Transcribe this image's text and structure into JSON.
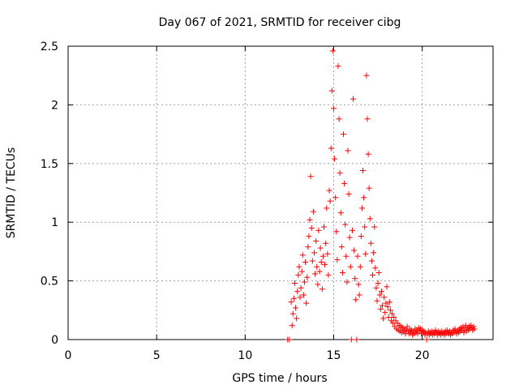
{
  "chart_data": {
    "type": "scatter",
    "title": "Day 067 of 2021, SRMTID for receiver cibg",
    "xlabel": "GPS time / hours",
    "ylabel": "SRMTID / TECUs",
    "xlim": [
      0,
      24
    ],
    "ylim": [
      0,
      2.5
    ],
    "x_ticks": [
      0,
      5,
      10,
      15,
      20
    ],
    "y_ticks": [
      0,
      0.5,
      1,
      1.5,
      2,
      2.5
    ],
    "x_tick_labels": [
      "0",
      "5",
      "10",
      "15",
      "20"
    ],
    "y_tick_labels": [
      "0",
      "0.5",
      "1",
      "1.5",
      "2",
      "2.5"
    ],
    "grid": true,
    "marker": "+",
    "color": "#ff0000",
    "series": [
      {
        "name": "SRMTID",
        "points": [
          [
            12.4,
            0.0
          ],
          [
            12.5,
            0.0
          ],
          [
            12.6,
            0.32
          ],
          [
            12.65,
            0.12
          ],
          [
            12.7,
            0.22
          ],
          [
            12.75,
            0.35
          ],
          [
            12.8,
            0.48
          ],
          [
            12.85,
            0.27
          ],
          [
            12.9,
            0.18
          ],
          [
            12.95,
            0.41
          ],
          [
            13.0,
            0.55
          ],
          [
            13.05,
            0.62
          ],
          [
            13.1,
            0.36
          ],
          [
            13.15,
            0.44
          ],
          [
            13.2,
            0.58
          ],
          [
            13.25,
            0.72
          ],
          [
            13.3,
            0.38
          ],
          [
            13.35,
            0.49
          ],
          [
            13.4,
            0.66
          ],
          [
            13.45,
            0.31
          ],
          [
            13.5,
            0.53
          ],
          [
            13.55,
            0.79
          ],
          [
            13.6,
            0.88
          ],
          [
            13.65,
            1.02
          ],
          [
            13.7,
            1.39
          ],
          [
            13.75,
            0.95
          ],
          [
            13.8,
            0.67
          ],
          [
            13.85,
            1.09
          ],
          [
            13.9,
            0.74
          ],
          [
            13.95,
            0.56
          ],
          [
            14.0,
            0.84
          ],
          [
            14.05,
            0.62
          ],
          [
            14.1,
            0.47
          ],
          [
            14.15,
            0.93
          ],
          [
            14.2,
            0.58
          ],
          [
            14.25,
            0.78
          ],
          [
            14.3,
            0.66
          ],
          [
            14.35,
            0.43
          ],
          [
            14.4,
            0.71
          ],
          [
            14.45,
            0.96
          ],
          [
            14.5,
            0.64
          ],
          [
            14.55,
            0.82
          ],
          [
            14.6,
            1.12
          ],
          [
            14.65,
            0.73
          ],
          [
            14.7,
            0.55
          ],
          [
            14.75,
            1.27
          ],
          [
            14.8,
            1.18
          ],
          [
            14.85,
            1.63
          ],
          [
            14.9,
            2.12
          ],
          [
            14.95,
            2.46
          ],
          [
            15.0,
            1.97
          ],
          [
            15.05,
            1.54
          ],
          [
            15.1,
            1.21
          ],
          [
            15.15,
            0.92
          ],
          [
            15.2,
            0.68
          ],
          [
            15.25,
            2.33
          ],
          [
            15.3,
            1.88
          ],
          [
            15.35,
            1.42
          ],
          [
            15.4,
            1.08
          ],
          [
            15.45,
            0.79
          ],
          [
            15.5,
            0.57
          ],
          [
            15.55,
            1.75
          ],
          [
            15.6,
            1.33
          ],
          [
            15.65,
            0.98
          ],
          [
            15.7,
            0.71
          ],
          [
            15.75,
            0.49
          ],
          [
            15.8,
            1.61
          ],
          [
            15.85,
            1.24
          ],
          [
            15.9,
            0.87
          ],
          [
            15.95,
            0.62
          ],
          [
            16.0,
            0.0
          ],
          [
            16.05,
            0.93
          ],
          [
            16.1,
            2.05
          ],
          [
            16.15,
            0.76
          ],
          [
            16.2,
            0.52
          ],
          [
            16.25,
            0.34
          ],
          [
            16.3,
            0.0
          ],
          [
            16.35,
            0.71
          ],
          [
            16.4,
            0.47
          ],
          [
            16.45,
            0.38
          ],
          [
            16.5,
            0.62
          ],
          [
            16.55,
            0.88
          ],
          [
            16.6,
            1.12
          ],
          [
            16.65,
            1.44
          ],
          [
            16.7,
            1.21
          ],
          [
            16.75,
            0.96
          ],
          [
            16.8,
            0.73
          ],
          [
            16.85,
            2.25
          ],
          [
            16.9,
            1.88
          ],
          [
            16.95,
            1.58
          ],
          [
            17.0,
            1.29
          ],
          [
            17.05,
            1.03
          ],
          [
            17.1,
            0.82
          ],
          [
            17.15,
            0.67
          ],
          [
            17.2,
            0.55
          ],
          [
            17.25,
            0.74
          ],
          [
            17.3,
            0.96
          ],
          [
            17.35,
            0.61
          ],
          [
            17.4,
            0.44
          ],
          [
            17.45,
            0.33
          ],
          [
            17.5,
            0.48
          ],
          [
            17.55,
            0.57
          ],
          [
            17.6,
            0.38
          ],
          [
            17.65,
            0.26
          ],
          [
            17.7,
            0.41
          ],
          [
            17.75,
            0.29
          ],
          [
            17.8,
            0.18
          ],
          [
            17.85,
            0.36
          ],
          [
            17.9,
            0.23
          ],
          [
            17.95,
            0.31
          ],
          [
            18.0,
            0.45
          ],
          [
            18.05,
            0.28
          ],
          [
            18.1,
            0.19
          ],
          [
            18.15,
            0.32
          ],
          [
            18.2,
            0.25
          ],
          [
            18.25,
            0.16
          ],
          [
            18.3,
            0.22
          ],
          [
            18.35,
            0.14
          ],
          [
            18.4,
            0.19
          ],
          [
            18.45,
            0.11
          ],
          [
            18.5,
            0.16
          ],
          [
            18.55,
            0.09
          ],
          [
            18.6,
            0.14
          ],
          [
            18.65,
            0.08
          ],
          [
            18.7,
            0.12
          ],
          [
            18.75,
            0.07
          ],
          [
            18.8,
            0.11
          ],
          [
            18.85,
            0.06
          ],
          [
            18.9,
            0.1
          ],
          [
            18.95,
            0.07
          ],
          [
            19.0,
            0.09
          ],
          [
            19.05,
            0.05
          ],
          [
            19.1,
            0.08
          ],
          [
            19.15,
            0.11
          ],
          [
            19.2,
            0.07
          ],
          [
            19.25,
            0.05
          ],
          [
            19.3,
            0.09
          ],
          [
            19.35,
            0.06
          ],
          [
            19.4,
            0.08
          ],
          [
            19.45,
            0.04
          ],
          [
            19.5,
            0.07
          ],
          [
            19.55,
            0.05
          ],
          [
            19.6,
            0.09
          ],
          [
            19.65,
            0.06
          ],
          [
            19.7,
            0.08
          ],
          [
            19.75,
            0.05
          ],
          [
            19.8,
            0.1
          ],
          [
            19.85,
            0.07
          ],
          [
            19.9,
            0.09
          ],
          [
            19.95,
            0.05
          ],
          [
            20.0,
            0.08
          ],
          [
            20.05,
            0.06
          ],
          [
            20.1,
            0.07
          ],
          [
            20.15,
            0.04
          ],
          [
            20.2,
            0.06
          ],
          [
            20.25,
            0.0
          ],
          [
            20.3,
            0.05
          ],
          [
            20.35,
            0.07
          ],
          [
            20.4,
            0.04
          ],
          [
            20.45,
            0.06
          ],
          [
            20.5,
            0.05
          ],
          [
            20.55,
            0.07
          ],
          [
            20.6,
            0.04
          ],
          [
            20.65,
            0.06
          ],
          [
            20.7,
            0.05
          ],
          [
            20.75,
            0.08
          ],
          [
            20.8,
            0.06
          ],
          [
            20.85,
            0.04
          ],
          [
            20.9,
            0.07
          ],
          [
            20.95,
            0.05
          ],
          [
            21.0,
            0.06
          ],
          [
            21.05,
            0.04
          ],
          [
            21.1,
            0.07
          ],
          [
            21.15,
            0.05
          ],
          [
            21.2,
            0.06
          ],
          [
            21.25,
            0.04
          ],
          [
            21.3,
            0.07
          ],
          [
            21.35,
            0.05
          ],
          [
            21.4,
            0.08
          ],
          [
            21.45,
            0.06
          ],
          [
            21.5,
            0.05
          ],
          [
            21.55,
            0.07
          ],
          [
            21.6,
            0.04
          ],
          [
            21.65,
            0.06
          ],
          [
            21.7,
            0.05
          ],
          [
            21.75,
            0.08
          ],
          [
            21.8,
            0.06
          ],
          [
            21.85,
            0.09
          ],
          [
            21.9,
            0.07
          ],
          [
            21.95,
            0.05
          ],
          [
            22.0,
            0.08
          ],
          [
            22.05,
            0.06
          ],
          [
            22.1,
            0.09
          ],
          [
            22.15,
            0.07
          ],
          [
            22.2,
            0.1
          ],
          [
            22.25,
            0.08
          ],
          [
            22.3,
            0.11
          ],
          [
            22.35,
            0.06
          ],
          [
            22.4,
            0.09
          ],
          [
            22.45,
            0.12
          ],
          [
            22.5,
            0.07
          ],
          [
            22.55,
            0.1
          ],
          [
            22.6,
            0.08
          ],
          [
            22.65,
            0.11
          ],
          [
            22.7,
            0.09
          ],
          [
            22.75,
            0.12
          ],
          [
            22.8,
            0.1
          ],
          [
            22.85,
            0.08
          ],
          [
            22.9,
            0.11
          ],
          [
            22.95,
            0.09
          ]
        ]
      }
    ]
  }
}
